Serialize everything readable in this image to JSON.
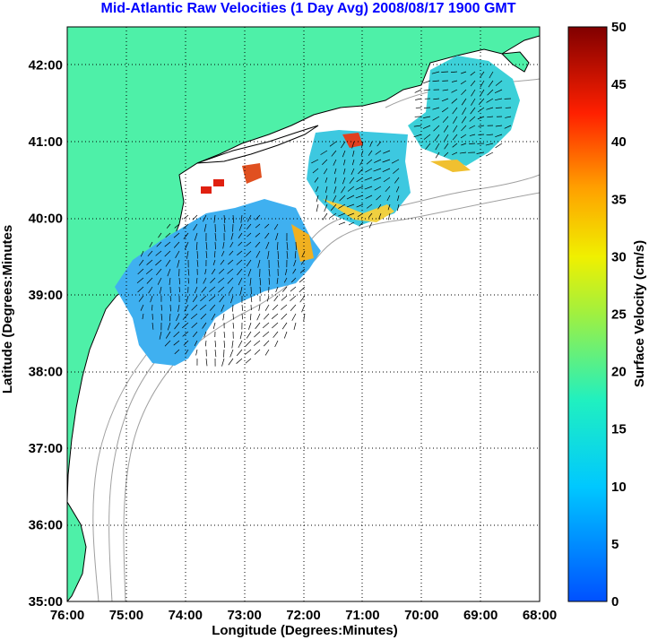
{
  "title": "Mid-Atlantic Raw Velocities (1 Day Avg) 2008/08/17 1900 GMT",
  "axes": {
    "xlabel": "Longitude (Degrees:Minutes)",
    "ylabel": "Latitude (Degrees:Minutes",
    "x_ticks": [
      "76:00",
      "75:00",
      "74:00",
      "73:00",
      "72:00",
      "71:00",
      "70:00",
      "69:00",
      "68:00"
    ],
    "y_ticks": [
      "35:00",
      "36:00",
      "37:00",
      "38:00",
      "39:00",
      "40:00",
      "41:00",
      "42:00"
    ],
    "lon_range": [
      -76.0,
      -68.0
    ],
    "lat_range": [
      35.0,
      42.5
    ],
    "grid": "dotted"
  },
  "colorbar": {
    "label": "Surface Velocity (cm/s)",
    "ticks": [
      "0",
      "5",
      "10",
      "15",
      "20",
      "25",
      "30",
      "35",
      "40",
      "45",
      "50"
    ],
    "range": [
      0,
      50
    ],
    "colormap": "jet"
  },
  "colors": {
    "land": "#4ef0a8",
    "title": "#0000ff",
    "isobath": "#a0a0a0",
    "coastline": "#000000"
  }
}
